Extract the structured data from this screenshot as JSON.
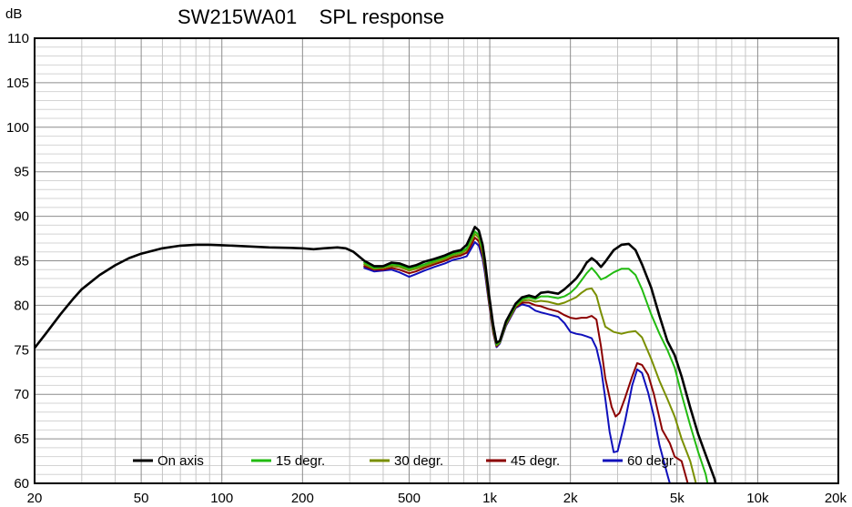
{
  "chart_data": {
    "type": "line",
    "title": "SW215WA01    SPL response",
    "ylabel": "dB",
    "xlabel": "",
    "xscale": "log",
    "xlim": [
      20,
      20000
    ],
    "ylim": [
      60,
      110
    ],
    "grid": true,
    "legend_position": "bottom",
    "x_ticks": [
      {
        "value": 20,
        "label": "20"
      },
      {
        "value": 50,
        "label": "50"
      },
      {
        "value": 100,
        "label": "100"
      },
      {
        "value": 200,
        "label": "200"
      },
      {
        "value": 500,
        "label": "500"
      },
      {
        "value": 1000,
        "label": "1k"
      },
      {
        "value": 2000,
        "label": "2k"
      },
      {
        "value": 5000,
        "label": "5k"
      },
      {
        "value": 10000,
        "label": "10k"
      },
      {
        "value": 20000,
        "label": "20k"
      }
    ],
    "y_ticks": [
      60,
      65,
      70,
      75,
      80,
      85,
      90,
      95,
      100,
      105,
      110
    ],
    "series": [
      {
        "name": "On axis",
        "color": "#000000",
        "points": [
          [
            20,
            75.2
          ],
          [
            22,
            76.8
          ],
          [
            25,
            79
          ],
          [
            28,
            80.8
          ],
          [
            30,
            81.8
          ],
          [
            35,
            83.4
          ],
          [
            40,
            84.5
          ],
          [
            45,
            85.3
          ],
          [
            50,
            85.8
          ],
          [
            60,
            86.4
          ],
          [
            70,
            86.7
          ],
          [
            80,
            86.8
          ],
          [
            90,
            86.8
          ],
          [
            100,
            86.75
          ],
          [
            120,
            86.65
          ],
          [
            150,
            86.5
          ],
          [
            180,
            86.45
          ],
          [
            200,
            86.4
          ],
          [
            220,
            86.3
          ],
          [
            240,
            86.4
          ],
          [
            270,
            86.5
          ],
          [
            290,
            86.4
          ],
          [
            310,
            86.0
          ],
          [
            340,
            85.0
          ],
          [
            370,
            84.4
          ],
          [
            400,
            84.4
          ],
          [
            430,
            84.8
          ],
          [
            460,
            84.7
          ],
          [
            500,
            84.3
          ],
          [
            530,
            84.5
          ],
          [
            570,
            84.9
          ],
          [
            620,
            85.2
          ],
          [
            680,
            85.6
          ],
          [
            730,
            86.0
          ],
          [
            780,
            86.2
          ],
          [
            820,
            86.8
          ],
          [
            850,
            87.8
          ],
          [
            880,
            88.8
          ],
          [
            910,
            88.4
          ],
          [
            940,
            86.8
          ],
          [
            960,
            85.0
          ],
          [
            990,
            81.5
          ],
          [
            1030,
            77.8
          ],
          [
            1060,
            75.8
          ],
          [
            1090,
            76.0
          ],
          [
            1150,
            78.2
          ],
          [
            1250,
            80.2
          ],
          [
            1320,
            80.9
          ],
          [
            1400,
            81.1
          ],
          [
            1480,
            80.9
          ],
          [
            1550,
            81.4
          ],
          [
            1650,
            81.5
          ],
          [
            1800,
            81.3
          ],
          [
            1900,
            81.8
          ],
          [
            2000,
            82.4
          ],
          [
            2100,
            83.0
          ],
          [
            2200,
            83.8
          ],
          [
            2300,
            84.8
          ],
          [
            2400,
            85.3
          ],
          [
            2500,
            84.9
          ],
          [
            2600,
            84.3
          ],
          [
            2700,
            84.9
          ],
          [
            2900,
            86.2
          ],
          [
            3100,
            86.8
          ],
          [
            3300,
            86.9
          ],
          [
            3500,
            86.2
          ],
          [
            3700,
            84.6
          ],
          [
            4000,
            82.0
          ],
          [
            4300,
            78.8
          ],
          [
            4600,
            76.0
          ],
          [
            4900,
            74.4
          ],
          [
            5200,
            72.0
          ],
          [
            5600,
            68.5
          ],
          [
            6000,
            65.5
          ],
          [
            6400,
            63.2
          ],
          [
            6900,
            60.5
          ],
          [
            7200,
            58.0
          ]
        ]
      },
      {
        "name": "15 degr.",
        "color": "#22bb11",
        "points": [
          [
            340,
            84.8
          ],
          [
            370,
            84.2
          ],
          [
            400,
            84.3
          ],
          [
            430,
            84.6
          ],
          [
            460,
            84.5
          ],
          [
            500,
            84.1
          ],
          [
            530,
            84.3
          ],
          [
            570,
            84.6
          ],
          [
            620,
            85.0
          ],
          [
            680,
            85.4
          ],
          [
            730,
            85.8
          ],
          [
            780,
            86.0
          ],
          [
            820,
            86.4
          ],
          [
            850,
            87.4
          ],
          [
            880,
            88.3
          ],
          [
            910,
            87.9
          ],
          [
            940,
            86.3
          ],
          [
            960,
            84.6
          ],
          [
            990,
            81.2
          ],
          [
            1030,
            77.5
          ],
          [
            1060,
            75.6
          ],
          [
            1090,
            75.9
          ],
          [
            1150,
            78.0
          ],
          [
            1250,
            80.0
          ],
          [
            1320,
            80.7
          ],
          [
            1400,
            80.9
          ],
          [
            1480,
            80.7
          ],
          [
            1550,
            81.0
          ],
          [
            1650,
            81.0
          ],
          [
            1800,
            80.8
          ],
          [
            1900,
            81.0
          ],
          [
            2000,
            81.4
          ],
          [
            2100,
            82.0
          ],
          [
            2200,
            82.8
          ],
          [
            2300,
            83.6
          ],
          [
            2400,
            84.2
          ],
          [
            2500,
            83.6
          ],
          [
            2600,
            82.9
          ],
          [
            2700,
            83.1
          ],
          [
            2900,
            83.7
          ],
          [
            3100,
            84.1
          ],
          [
            3300,
            84.1
          ],
          [
            3500,
            83.4
          ],
          [
            3700,
            81.8
          ],
          [
            4000,
            79.0
          ],
          [
            4300,
            76.8
          ],
          [
            4600,
            75.0
          ],
          [
            4900,
            73.0
          ],
          [
            5200,
            70.0
          ],
          [
            5600,
            66.5
          ],
          [
            6000,
            63.5
          ],
          [
            6400,
            61.0
          ],
          [
            6700,
            58.0
          ]
        ]
      },
      {
        "name": "30 degr.",
        "color": "#7a8f00",
        "points": [
          [
            340,
            84.6
          ],
          [
            370,
            84.1
          ],
          [
            400,
            84.2
          ],
          [
            430,
            84.4
          ],
          [
            460,
            84.3
          ],
          [
            500,
            83.9
          ],
          [
            530,
            84.1
          ],
          [
            570,
            84.4
          ],
          [
            620,
            84.8
          ],
          [
            680,
            85.2
          ],
          [
            730,
            85.6
          ],
          [
            780,
            85.8
          ],
          [
            820,
            86.2
          ],
          [
            850,
            87.1
          ],
          [
            880,
            88.0
          ],
          [
            910,
            87.6
          ],
          [
            940,
            86.0
          ],
          [
            960,
            84.3
          ],
          [
            990,
            81.0
          ],
          [
            1030,
            77.3
          ],
          [
            1060,
            75.5
          ],
          [
            1090,
            75.8
          ],
          [
            1150,
            77.9
          ],
          [
            1250,
            79.9
          ],
          [
            1320,
            80.5
          ],
          [
            1400,
            80.6
          ],
          [
            1480,
            80.4
          ],
          [
            1550,
            80.5
          ],
          [
            1650,
            80.4
          ],
          [
            1800,
            80.1
          ],
          [
            1900,
            80.3
          ],
          [
            2000,
            80.6
          ],
          [
            2100,
            80.9
          ],
          [
            2200,
            81.4
          ],
          [
            2300,
            81.8
          ],
          [
            2400,
            81.9
          ],
          [
            2500,
            81.1
          ],
          [
            2600,
            79.2
          ],
          [
            2700,
            77.6
          ],
          [
            2900,
            77.0
          ],
          [
            3100,
            76.8
          ],
          [
            3300,
            77.0
          ],
          [
            3500,
            77.1
          ],
          [
            3700,
            76.4
          ],
          [
            4000,
            74.0
          ],
          [
            4300,
            71.5
          ],
          [
            4600,
            69.5
          ],
          [
            4900,
            67.5
          ],
          [
            5200,
            65.0
          ],
          [
            5600,
            62.5
          ],
          [
            6000,
            59.0
          ]
        ]
      },
      {
        "name": "45 degr.",
        "color": "#8b0000",
        "points": [
          [
            340,
            84.4
          ],
          [
            370,
            84.0
          ],
          [
            400,
            84.0
          ],
          [
            430,
            84.2
          ],
          [
            460,
            84.0
          ],
          [
            500,
            83.6
          ],
          [
            530,
            83.8
          ],
          [
            570,
            84.2
          ],
          [
            620,
            84.6
          ],
          [
            680,
            85.0
          ],
          [
            730,
            85.4
          ],
          [
            780,
            85.6
          ],
          [
            820,
            85.9
          ],
          [
            850,
            86.7
          ],
          [
            880,
            87.6
          ],
          [
            910,
            87.2
          ],
          [
            940,
            85.6
          ],
          [
            960,
            84.0
          ],
          [
            990,
            80.7
          ],
          [
            1030,
            77.0
          ],
          [
            1060,
            75.4
          ],
          [
            1090,
            75.8
          ],
          [
            1150,
            77.8
          ],
          [
            1250,
            79.8
          ],
          [
            1320,
            80.3
          ],
          [
            1400,
            80.3
          ],
          [
            1480,
            80.0
          ],
          [
            1550,
            79.9
          ],
          [
            1650,
            79.6
          ],
          [
            1800,
            79.3
          ],
          [
            1900,
            78.9
          ],
          [
            2000,
            78.6
          ],
          [
            2100,
            78.5
          ],
          [
            2200,
            78.6
          ],
          [
            2300,
            78.6
          ],
          [
            2400,
            78.8
          ],
          [
            2500,
            78.4
          ],
          [
            2600,
            75.4
          ],
          [
            2700,
            71.8
          ],
          [
            2850,
            68.6
          ],
          [
            2950,
            67.5
          ],
          [
            3050,
            67.9
          ],
          [
            3200,
            69.6
          ],
          [
            3400,
            72.0
          ],
          [
            3550,
            73.5
          ],
          [
            3700,
            73.3
          ],
          [
            3900,
            72.2
          ],
          [
            4100,
            70.0
          ],
          [
            4400,
            66.0
          ],
          [
            4700,
            64.5
          ],
          [
            4900,
            63.0
          ],
          [
            5200,
            62.5
          ],
          [
            5600,
            59.0
          ]
        ]
      },
      {
        "name": "60 degr.",
        "color": "#1010bb",
        "points": [
          [
            340,
            84.2
          ],
          [
            370,
            83.8
          ],
          [
            400,
            83.9
          ],
          [
            430,
            84.0
          ],
          [
            460,
            83.7
          ],
          [
            500,
            83.2
          ],
          [
            530,
            83.5
          ],
          [
            570,
            83.9
          ],
          [
            620,
            84.3
          ],
          [
            680,
            84.7
          ],
          [
            730,
            85.1
          ],
          [
            780,
            85.3
          ],
          [
            820,
            85.5
          ],
          [
            850,
            86.3
          ],
          [
            880,
            87.1
          ],
          [
            910,
            86.7
          ],
          [
            940,
            85.2
          ],
          [
            960,
            83.6
          ],
          [
            990,
            80.5
          ],
          [
            1030,
            76.9
          ],
          [
            1060,
            75.3
          ],
          [
            1090,
            75.7
          ],
          [
            1150,
            77.7
          ],
          [
            1250,
            79.7
          ],
          [
            1320,
            80.1
          ],
          [
            1400,
            79.9
          ],
          [
            1480,
            79.4
          ],
          [
            1550,
            79.2
          ],
          [
            1650,
            79.0
          ],
          [
            1800,
            78.7
          ],
          [
            1900,
            78.0
          ],
          [
            2000,
            77.0
          ],
          [
            2100,
            76.8
          ],
          [
            2200,
            76.7
          ],
          [
            2300,
            76.5
          ],
          [
            2400,
            76.3
          ],
          [
            2500,
            75.2
          ],
          [
            2600,
            73.0
          ],
          [
            2700,
            69.5
          ],
          [
            2800,
            65.8
          ],
          [
            2900,
            63.5
          ],
          [
            3000,
            63.6
          ],
          [
            3200,
            67.0
          ],
          [
            3400,
            71.0
          ],
          [
            3550,
            72.8
          ],
          [
            3700,
            72.4
          ],
          [
            3900,
            70.2
          ],
          [
            4100,
            67.5
          ],
          [
            4300,
            64.3
          ],
          [
            4600,
            61.0
          ],
          [
            4800,
            59.0
          ]
        ]
      }
    ]
  }
}
